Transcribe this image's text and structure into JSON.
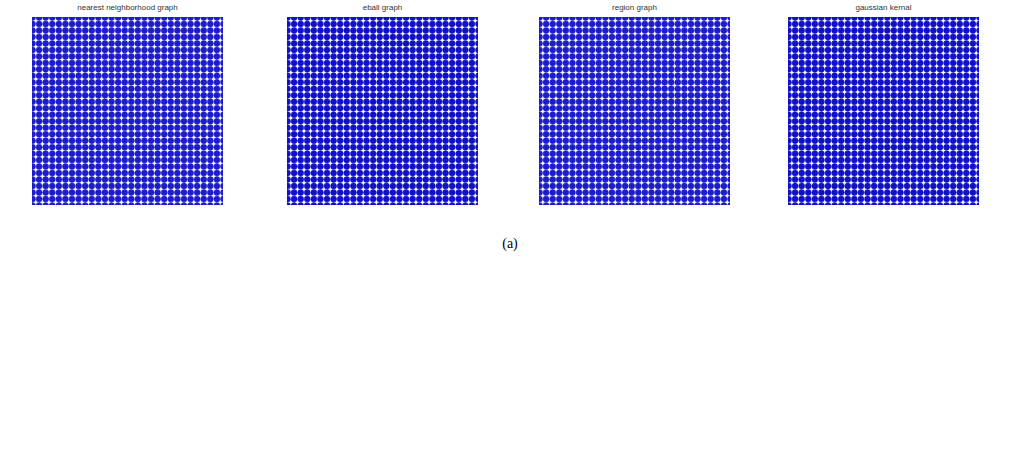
{
  "chart_data": [
    {
      "type": "scatter",
      "title": "nearest neighborhood graph",
      "x": [
        1,
        2,
        3,
        4,
        5,
        6,
        7,
        8,
        9,
        10,
        11,
        12,
        13,
        14,
        15,
        16,
        17,
        18,
        19,
        20,
        21,
        22,
        23,
        24,
        25,
        26,
        27,
        28,
        29,
        30
      ],
      "y": [
        1,
        2,
        3,
        4,
        5,
        6,
        7,
        8,
        9,
        10,
        11,
        12,
        13,
        14,
        15,
        16,
        17,
        18,
        19,
        20,
        21,
        22,
        23,
        24,
        25,
        26,
        27,
        28,
        29,
        30
      ],
      "xlim": [
        1,
        30
      ],
      "ylim": [
        1,
        30
      ],
      "color": "#1c1ccc",
      "tick_labels": false
    },
    {
      "type": "scatter",
      "title": "eball graph",
      "x": [
        1,
        2,
        3,
        4,
        5,
        6,
        7,
        8,
        9,
        10,
        11,
        12,
        13,
        14,
        15,
        16,
        17,
        18,
        19,
        20,
        21,
        22,
        23,
        24,
        25,
        26,
        27,
        28,
        29,
        30
      ],
      "y": [
        1,
        2,
        3,
        4,
        5,
        6,
        7,
        8,
        9,
        10,
        11,
        12,
        13,
        14,
        15,
        16,
        17,
        18,
        19,
        20,
        21,
        22,
        23,
        24,
        25,
        26,
        27,
        28,
        29,
        30
      ],
      "xlim": [
        1,
        30
      ],
      "ylim": [
        1,
        30
      ],
      "color": "#1010c8",
      "tick_labels": false
    },
    {
      "type": "scatter",
      "title": "region graph",
      "x": [
        1,
        2,
        3,
        4,
        5,
        6,
        7,
        8,
        9,
        10,
        11,
        12,
        13,
        14,
        15,
        16,
        17,
        18,
        19,
        20,
        21,
        22,
        23,
        24,
        25,
        26,
        27,
        28,
        29,
        30
      ],
      "y": [
        1,
        2,
        3,
        4,
        5,
        6,
        7,
        8,
        9,
        10,
        11,
        12,
        13,
        14,
        15,
        16,
        17,
        18,
        19,
        20,
        21,
        22,
        23,
        24,
        25,
        26,
        27,
        28,
        29,
        30
      ],
      "xlim": [
        1,
        30
      ],
      "ylim": [
        1,
        30
      ],
      "color": "#1c1ccc",
      "tick_labels": false
    },
    {
      "type": "scatter",
      "title": "gaussian kernal",
      "x": [
        1,
        2,
        3,
        4,
        5,
        6,
        7,
        8,
        9,
        10,
        11,
        12,
        13,
        14,
        15,
        16,
        17,
        18,
        19,
        20,
        21,
        22,
        23,
        24,
        25,
        26,
        27,
        28,
        29,
        30
      ],
      "y": [
        1,
        2,
        3,
        4,
        5,
        6,
        7,
        8,
        9,
        10,
        11,
        12,
        13,
        14,
        15,
        16,
        17,
        18,
        19,
        20,
        21,
        22,
        23,
        24,
        25,
        26,
        27,
        28,
        29,
        30
      ],
      "xlim": [
        1,
        30
      ],
      "ylim": [
        1,
        30
      ],
      "color": "#1010c8",
      "tick_labels": false
    }
  ],
  "caption": "(a)"
}
